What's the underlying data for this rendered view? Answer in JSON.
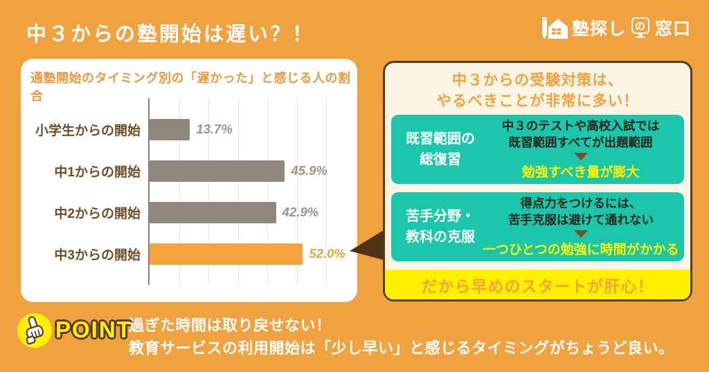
{
  "colors": {
    "background": "#F0A240",
    "accent_orange": "#F2A13F",
    "bar_gray": "#8F877D",
    "bar_gray_value": "#9C948B",
    "bar_orange": "#F5A33C",
    "label_brown": "#6F4C29",
    "panel_border_brown": "#5A3A1A",
    "panel_bg_cream": "#FBF5E6",
    "green": "#1CC6AB",
    "yellow": "#FFF100",
    "white": "#FFFFFF"
  },
  "header": {
    "title": "中３からの塾開始は遅い？！",
    "logo": {
      "icon": "pencil-house-icon",
      "text_before": "塾探し",
      "no_char": "の",
      "text_after": "窓口"
    }
  },
  "chart_data": {
    "type": "bar",
    "orientation": "horizontal",
    "title": "通塾開始のタイミング別の「遅かった」と感じる人の割合",
    "categories": [
      "小学生からの開始",
      "中1からの開始",
      "中2からの開始",
      "中3からの開始"
    ],
    "values": [
      13.7,
      45.9,
      42.9,
      52.0
    ],
    "value_labels": [
      "13.7%",
      "45.9%",
      "42.9%",
      "52.0%"
    ],
    "unit": "%",
    "xlim": [
      0,
      70
    ],
    "gridline_step": 10,
    "grid": true,
    "legend": false,
    "highlight_index": 3,
    "bar_color": "#8F877D",
    "highlight_color": "#F5A33C",
    "value_color": "#9C948B",
    "highlight_value_color": "#F2A13F"
  },
  "panel": {
    "title": "中３からの受験対策は、\nやるべきことが非常に多い！",
    "boxes": [
      {
        "heading": "既習範囲の\n総復習",
        "body": "中３のテストや高校入試では\n既習範囲すべてが出題範囲",
        "result": "勉強すべき量が膨大"
      },
      {
        "heading": "苦手分野・\n教科の克服",
        "body": "得点力をつけるには、\n苦手克服は避けて通れない",
        "result": "一つひとつの勉強に時間がかかる"
      }
    ],
    "banner": "だから早めのスタートが肝心！"
  },
  "point": {
    "label": "POINT",
    "text": "過ぎた時間は取り戻せない！\n教育サービスの利用開始は「少し早い」と感じるタイミングがちょうど良い。"
  }
}
